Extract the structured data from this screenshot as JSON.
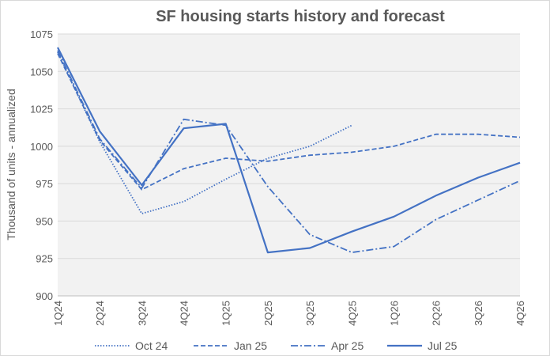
{
  "chart_data": {
    "type": "line",
    "title": "SF housing starts history and forecast",
    "xlabel": "",
    "ylabel": "Thousand of units - annualized",
    "ylim": [
      900,
      1075
    ],
    "yticks": [
      900,
      925,
      950,
      975,
      1000,
      1025,
      1050,
      1075
    ],
    "categories": [
      "1Q24",
      "2Q24",
      "3Q24",
      "4Q24",
      "1Q25",
      "2Q25",
      "3Q25",
      "4Q25",
      "1Q26",
      "2Q26",
      "3Q26",
      "4Q26"
    ],
    "grid": true,
    "legend_position": "bottom",
    "series": [
      {
        "name": "Oct 24",
        "style": "dotted",
        "color": "#4472c4",
        "values": [
          1063,
          1003,
          955,
          963,
          978,
          992,
          1000,
          1014,
          null,
          null,
          null,
          null
        ]
      },
      {
        "name": "Jan 25",
        "style": "dashed",
        "color": "#4472c4",
        "values": [
          1062,
          1004,
          971,
          985,
          992,
          990,
          994,
          996,
          1000,
          1008,
          1008,
          1006
        ]
      },
      {
        "name": "Apr 25",
        "style": "dashdot",
        "color": "#4472c4",
        "values": [
          1064,
          1005,
          972,
          1018,
          1014,
          973,
          941,
          929,
          933,
          951,
          964,
          977
        ]
      },
      {
        "name": "Jul 25",
        "style": "solid",
        "color": "#4472c4",
        "values": [
          1066,
          1010,
          974,
          1012,
          1015,
          929,
          932,
          943,
          953,
          967,
          979,
          989
        ]
      }
    ]
  }
}
